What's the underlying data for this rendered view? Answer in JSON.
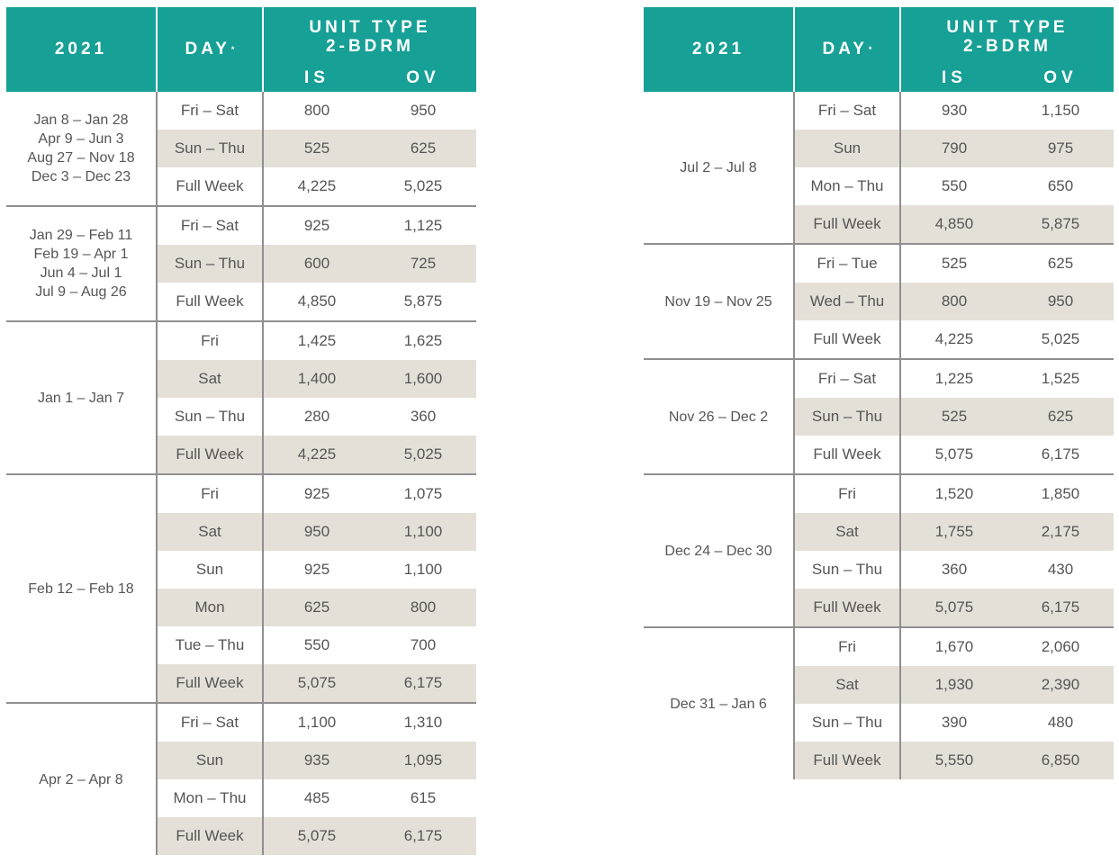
{
  "header": {
    "year": "2021",
    "day": "DAY",
    "day_mark": "*",
    "unit_line1": "UNIT TYPE",
    "unit_line2": "2-BDRM",
    "col_is": "IS",
    "col_ov": "OV"
  },
  "left": [
    {
      "dates": [
        "Jan 8 – Jan 28",
        "Apr 9 – Jun 3",
        "Aug 27 – Nov 18",
        "Dec 3 – Dec 23"
      ],
      "rows": [
        [
          "Fri – Sat",
          "800",
          "950"
        ],
        [
          "Sun – Thu",
          "525",
          "625"
        ],
        [
          "Full Week",
          "4,225",
          "5,025"
        ]
      ]
    },
    {
      "dates": [
        "Jan 29 – Feb 11",
        "Feb 19 – Apr 1",
        "Jun 4 – Jul 1",
        "Jul 9 – Aug 26"
      ],
      "rows": [
        [
          "Fri – Sat",
          "925",
          "1,125"
        ],
        [
          "Sun – Thu",
          "600",
          "725"
        ],
        [
          "Full Week",
          "4,850",
          "5,875"
        ]
      ]
    },
    {
      "dates": [
        "Jan 1 – Jan 7"
      ],
      "rows": [
        [
          "Fri",
          "1,425",
          "1,625"
        ],
        [
          "Sat",
          "1,400",
          "1,600"
        ],
        [
          "Sun – Thu",
          "280",
          "360"
        ],
        [
          "Full Week",
          "4,225",
          "5,025"
        ]
      ]
    },
    {
      "dates": [
        "Feb 12 – Feb 18"
      ],
      "rows": [
        [
          "Fri",
          "925",
          "1,075"
        ],
        [
          "Sat",
          "950",
          "1,100"
        ],
        [
          "Sun",
          "925",
          "1,100"
        ],
        [
          "Mon",
          "625",
          "800"
        ],
        [
          "Tue – Thu",
          "550",
          "700"
        ],
        [
          "Full Week",
          "5,075",
          "6,175"
        ]
      ]
    },
    {
      "dates": [
        "Apr 2 – Apr 8"
      ],
      "rows": [
        [
          "Fri – Sat",
          "1,100",
          "1,310"
        ],
        [
          "Sun",
          "935",
          "1,095"
        ],
        [
          "Mon – Thu",
          "485",
          "615"
        ],
        [
          "Full Week",
          "5,075",
          "6,175"
        ]
      ]
    }
  ],
  "right": [
    {
      "dates": [
        "Jul 2 – Jul 8"
      ],
      "rows": [
        [
          "Fri – Sat",
          "930",
          "1,150"
        ],
        [
          "Sun",
          "790",
          "975"
        ],
        [
          "Mon – Thu",
          "550",
          "650"
        ],
        [
          "Full Week",
          "4,850",
          "5,875"
        ]
      ]
    },
    {
      "dates": [
        "Nov 19 – Nov 25"
      ],
      "rows": [
        [
          "Fri – Tue",
          "525",
          "625"
        ],
        [
          "Wed – Thu",
          "800",
          "950"
        ],
        [
          "Full Week",
          "4,225",
          "5,025"
        ]
      ]
    },
    {
      "dates": [
        "Nov 26 – Dec 2"
      ],
      "rows": [
        [
          "Fri – Sat",
          "1,225",
          "1,525"
        ],
        [
          "Sun – Thu",
          "525",
          "625"
        ],
        [
          "Full Week",
          "5,075",
          "6,175"
        ]
      ]
    },
    {
      "dates": [
        "Dec 24 – Dec 30"
      ],
      "rows": [
        [
          "Fri",
          "1,520",
          "1,850"
        ],
        [
          "Sat",
          "1,755",
          "2,175"
        ],
        [
          "Sun – Thu",
          "360",
          "430"
        ],
        [
          "Full Week",
          "5,075",
          "6,175"
        ]
      ]
    },
    {
      "dates": [
        "Dec 31 – Jan 6"
      ],
      "rows": [
        [
          "Fri",
          "1,670",
          "2,060"
        ],
        [
          "Sat",
          "1,930",
          "2,390"
        ],
        [
          "Sun – Thu",
          "390",
          "480"
        ],
        [
          "Full Week",
          "5,550",
          "6,850"
        ]
      ]
    }
  ],
  "colors": {
    "header_bg": "#17a096",
    "shade": "#e4e0d8",
    "rule": "#8f8f8f"
  }
}
